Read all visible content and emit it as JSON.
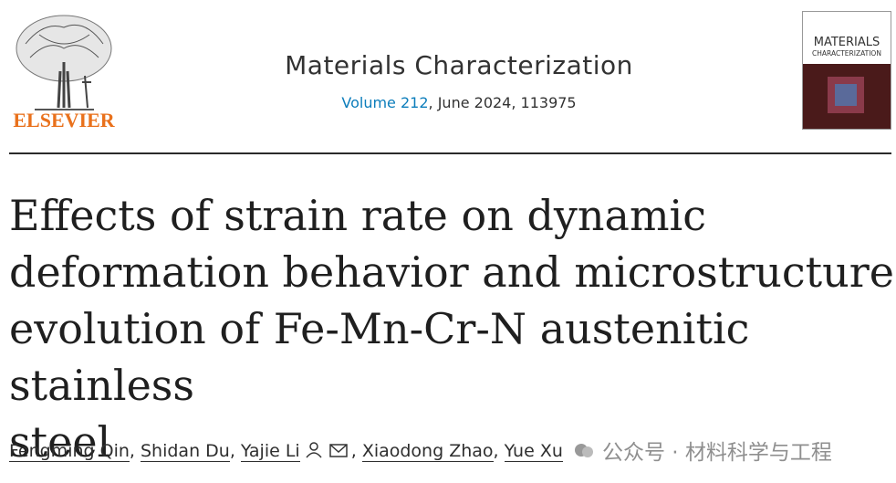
{
  "header": {
    "publisher": "ELSEVIER",
    "journal": "Materials Characterization",
    "volume": "Volume 212",
    "issue_info": ", June 2024, 113975",
    "cover_title": "MATERIALS",
    "cover_subtitle": "CHARACTERIZATION"
  },
  "article": {
    "title_lines": [
      "Effects of strain rate on dynamic",
      "deformation behavior and microstructure",
      "evolution of Fe-Mn-Cr-N austenitic stainless",
      "steel"
    ],
    "authors": [
      "Fengming Qin",
      "Shidan Du",
      "Yajie Li",
      "Xiaodong Zhao",
      "Yue Xu"
    ],
    "separator": ","
  },
  "watermark": "公众号 · 材料科学与工程"
}
